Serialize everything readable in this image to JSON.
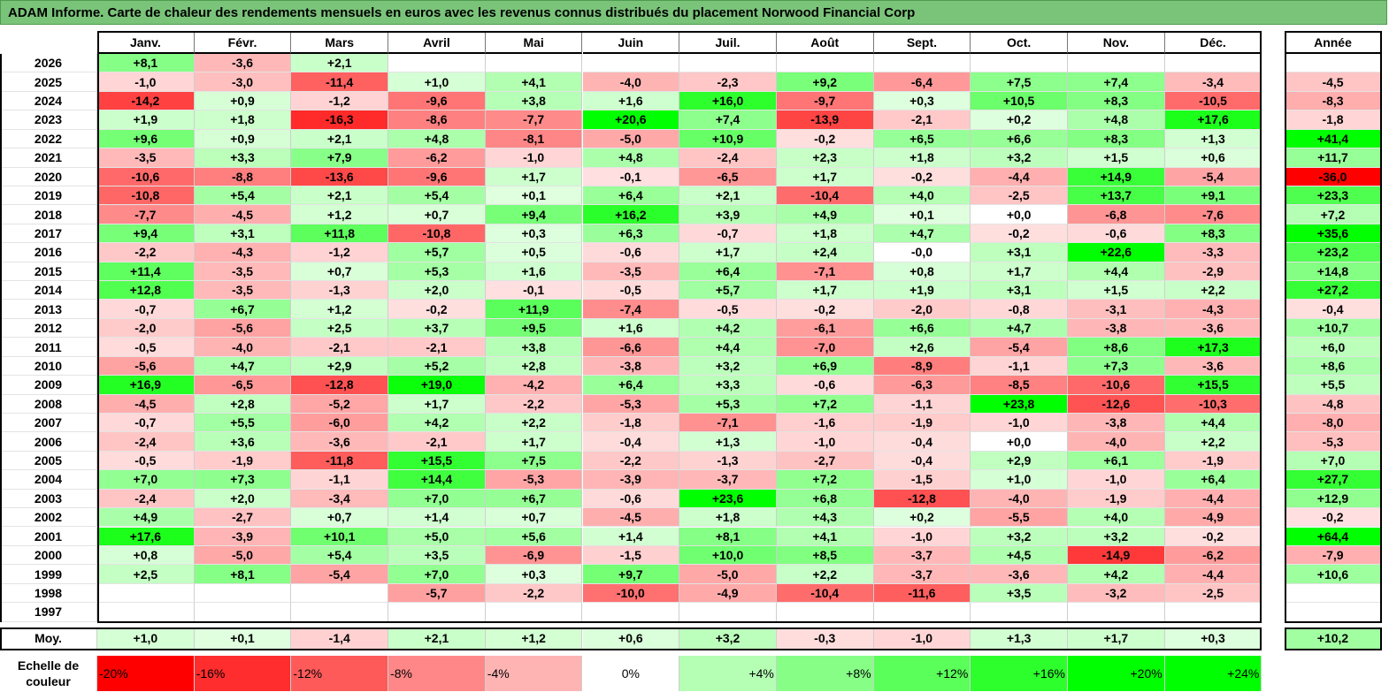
{
  "title": "ADAM Informe. Carte de chaleur des rendements mensuels en euros avec les revenus connus distribués du placement Norwood Financial Corp",
  "chart_data": {
    "type": "heatmap",
    "columns": [
      "Janv.",
      "Févr.",
      "Mars",
      "Avril",
      "Mai",
      "Juin",
      "Juil.",
      "Août",
      "Sept.",
      "Oct.",
      "Nov.",
      "Déc."
    ],
    "year_column_label": "Année",
    "average_row_label": "Moy.",
    "rows": [
      {
        "year": "2026",
        "values": [
          "+8,1",
          "-3,6",
          "+2,1",
          "",
          "",
          "",
          "",
          "",
          "",
          "",
          "",
          ""
        ],
        "annual": ""
      },
      {
        "year": "2025",
        "values": [
          "-1,0",
          "-3,0",
          "-11,4",
          "+1,0",
          "+4,1",
          "-4,0",
          "-2,3",
          "+9,2",
          "-6,4",
          "+7,5",
          "+7,4",
          "-3,4"
        ],
        "annual": "-4,5"
      },
      {
        "year": "2024",
        "values": [
          "-14,2",
          "+0,9",
          "-1,2",
          "-9,6",
          "+3,8",
          "+1,6",
          "+16,0",
          "-9,7",
          "+0,3",
          "+10,5",
          "+8,3",
          "-10,5"
        ],
        "annual": "-8,3"
      },
      {
        "year": "2023",
        "values": [
          "+1,9",
          "+1,8",
          "-16,3",
          "-8,6",
          "-7,7",
          "+20,6",
          "+7,4",
          "-13,9",
          "-2,1",
          "+0,2",
          "+4,8",
          "+17,6"
        ],
        "annual": "-1,8"
      },
      {
        "year": "2022",
        "values": [
          "+9,6",
          "+0,9",
          "+2,1",
          "+4,8",
          "-8,1",
          "-5,0",
          "+10,9",
          "-0,2",
          "+6,5",
          "+6,6",
          "+8,3",
          "+1,3"
        ],
        "annual": "+41,4"
      },
      {
        "year": "2021",
        "values": [
          "-3,5",
          "+3,3",
          "+7,9",
          "-6,2",
          "-1,0",
          "+4,8",
          "-2,4",
          "+2,3",
          "+1,8",
          "+3,2",
          "+1,5",
          "+0,6"
        ],
        "annual": "+11,7"
      },
      {
        "year": "2020",
        "values": [
          "-10,6",
          "-8,8",
          "-13,6",
          "-9,6",
          "+1,7",
          "-0,1",
          "-6,5",
          "+1,7",
          "-0,2",
          "-4,4",
          "+14,9",
          "-5,4"
        ],
        "annual": "-36,0"
      },
      {
        "year": "2019",
        "values": [
          "-10,8",
          "+5,4",
          "+2,1",
          "+5,4",
          "+0,1",
          "+6,4",
          "+2,1",
          "-10,4",
          "+4,0",
          "-2,5",
          "+13,7",
          "+9,1"
        ],
        "annual": "+23,3"
      },
      {
        "year": "2018",
        "values": [
          "-7,7",
          "-4,5",
          "+1,2",
          "+0,7",
          "+9,4",
          "+16,2",
          "+3,9",
          "+4,9",
          "+0,1",
          "+0,0",
          "-6,8",
          "-7,6"
        ],
        "annual": "+7,2"
      },
      {
        "year": "2017",
        "values": [
          "+9,4",
          "+3,1",
          "+11,8",
          "-10,8",
          "+0,3",
          "+6,3",
          "-0,7",
          "+1,8",
          "+4,7",
          "-0,2",
          "-0,6",
          "+8,3"
        ],
        "annual": "+35,6"
      },
      {
        "year": "2016",
        "values": [
          "-2,2",
          "-4,3",
          "-1,2",
          "+5,7",
          "+0,5",
          "-0,6",
          "+1,7",
          "+2,4",
          "-0,0",
          "+3,1",
          "+22,6",
          "-3,3"
        ],
        "annual": "+23,2"
      },
      {
        "year": "2015",
        "values": [
          "+11,4",
          "-3,5",
          "+0,7",
          "+5,3",
          "+1,6",
          "-3,5",
          "+6,4",
          "-7,1",
          "+0,8",
          "+1,7",
          "+4,4",
          "-2,9"
        ],
        "annual": "+14,8"
      },
      {
        "year": "2014",
        "values": [
          "+12,8",
          "-3,5",
          "-1,3",
          "+2,0",
          "-0,1",
          "-0,5",
          "+5,7",
          "+1,7",
          "+1,9",
          "+3,1",
          "+1,5",
          "+2,2"
        ],
        "annual": "+27,2"
      },
      {
        "year": "2013",
        "values": [
          "-0,7",
          "+6,7",
          "+1,2",
          "-0,2",
          "+11,9",
          "-7,4",
          "-0,5",
          "-0,2",
          "-2,0",
          "-0,8",
          "-3,1",
          "-4,3"
        ],
        "annual": "-0,4"
      },
      {
        "year": "2012",
        "values": [
          "-2,0",
          "-5,6",
          "+2,5",
          "+3,7",
          "+9,5",
          "+1,6",
          "+4,2",
          "-6,1",
          "+6,6",
          "+4,7",
          "-3,8",
          "-3,6"
        ],
        "annual": "+10,7"
      },
      {
        "year": "2011",
        "values": [
          "-0,5",
          "-4,0",
          "-2,1",
          "-2,1",
          "+3,8",
          "-6,6",
          "+4,4",
          "-7,0",
          "+2,6",
          "-5,4",
          "+8,6",
          "+17,3"
        ],
        "annual": "+6,0"
      },
      {
        "year": "2010",
        "values": [
          "-5,6",
          "+4,7",
          "+2,9",
          "+5,2",
          "+2,8",
          "-3,8",
          "+3,2",
          "+6,9",
          "-8,9",
          "-1,1",
          "+7,3",
          "-3,6"
        ],
        "annual": "+8,6"
      },
      {
        "year": "2009",
        "values": [
          "+16,9",
          "-6,5",
          "-12,8",
          "+19,0",
          "-4,2",
          "+6,4",
          "+3,3",
          "-0,6",
          "-6,3",
          "-8,5",
          "-10,6",
          "+15,5"
        ],
        "annual": "+5,5"
      },
      {
        "year": "2008",
        "values": [
          "-4,5",
          "+2,8",
          "-5,2",
          "+1,7",
          "-2,2",
          "-5,3",
          "+5,3",
          "+7,2",
          "-1,1",
          "+23,8",
          "-12,6",
          "-10,3"
        ],
        "annual": "-4,8"
      },
      {
        "year": "2007",
        "values": [
          "-0,7",
          "+5,5",
          "-6,0",
          "+4,2",
          "+2,2",
          "-1,8",
          "-7,1",
          "-1,6",
          "-1,9",
          "-1,0",
          "-3,8",
          "+4,4"
        ],
        "annual": "-8,0"
      },
      {
        "year": "2006",
        "values": [
          "-2,4",
          "+3,6",
          "-3,6",
          "-2,1",
          "+1,7",
          "-0,4",
          "+1,3",
          "-1,0",
          "-0,4",
          "+0,0",
          "-4,0",
          "+2,2"
        ],
        "annual": "-5,3"
      },
      {
        "year": "2005",
        "values": [
          "-0,5",
          "-1,9",
          "-11,8",
          "+15,5",
          "+7,5",
          "-2,2",
          "-1,3",
          "-2,7",
          "-0,4",
          "+2,9",
          "+6,1",
          "-1,9"
        ],
        "annual": "+7,0"
      },
      {
        "year": "2004",
        "values": [
          "+7,0",
          "+7,3",
          "-1,1",
          "+14,4",
          "-5,3",
          "-3,9",
          "-3,7",
          "+7,2",
          "-1,5",
          "+1,0",
          "-1,0",
          "+6,4"
        ],
        "annual": "+27,7"
      },
      {
        "year": "2003",
        "values": [
          "-2,4",
          "+2,0",
          "-3,4",
          "+7,0",
          "+6,7",
          "-0,6",
          "+23,6",
          "+6,8",
          "-12,8",
          "-4,0",
          "-1,9",
          "-4,4"
        ],
        "annual": "+12,9"
      },
      {
        "year": "2002",
        "values": [
          "+4,9",
          "-2,7",
          "+0,7",
          "+1,4",
          "+0,7",
          "-4,5",
          "+1,8",
          "+4,3",
          "+0,2",
          "-5,5",
          "+4,0",
          "-4,9"
        ],
        "annual": "-0,2"
      },
      {
        "year": "2001",
        "values": [
          "+17,6",
          "-3,9",
          "+10,1",
          "+5,0",
          "+5,6",
          "+1,4",
          "+8,1",
          "+4,1",
          "-1,0",
          "+3,2",
          "+3,2",
          "-0,2"
        ],
        "annual": "+64,4"
      },
      {
        "year": "2000",
        "values": [
          "+0,8",
          "-5,0",
          "+5,4",
          "+3,5",
          "-6,9",
          "-1,5",
          "+10,0",
          "+8,5",
          "-3,7",
          "+4,5",
          "-14,9",
          "-6,2"
        ],
        "annual": "-7,9"
      },
      {
        "year": "1999",
        "values": [
          "+2,5",
          "+8,1",
          "-5,4",
          "+7,0",
          "+0,3",
          "+9,7",
          "-5,0",
          "+2,2",
          "-3,7",
          "-3,6",
          "+4,2",
          "-4,4"
        ],
        "annual": "+10,6"
      },
      {
        "year": "1998",
        "values": [
          "",
          "",
          "",
          "-5,7",
          "-2,2",
          "-10,0",
          "-4,9",
          "-10,4",
          "-11,6",
          "+3,5",
          "-3,2",
          "-2,5"
        ],
        "annual": ""
      },
      {
        "year": "1997",
        "values": [
          "",
          "",
          "",
          "",
          "",
          "",
          "",
          "",
          "",
          "",
          "",
          ""
        ],
        "annual": ""
      }
    ],
    "averages": {
      "values": [
        "+1,0",
        "+0,1",
        "-1,4",
        "+2,1",
        "+1,2",
        "+0,6",
        "+3,2",
        "-0,3",
        "-1,0",
        "+1,3",
        "+1,7",
        "+0,3"
      ],
      "annual": "+10,2"
    },
    "color_scale": {
      "label": "Echelle de couleur",
      "stops": [
        "-20%",
        "-16%",
        "-12%",
        "-8%",
        "-4%",
        "0%",
        "+4%",
        "+8%",
        "+12%",
        "+16%",
        "+20%",
        "+24%"
      ],
      "stop_values": [
        -20,
        -16,
        -12,
        -8,
        -4,
        0,
        4,
        8,
        12,
        16,
        20,
        24
      ]
    },
    "colors": {
      "negative": "#ff0000",
      "positive": "#00ff00",
      "neutral": "#ffffff",
      "title_bg": "#7ac47a"
    }
  }
}
